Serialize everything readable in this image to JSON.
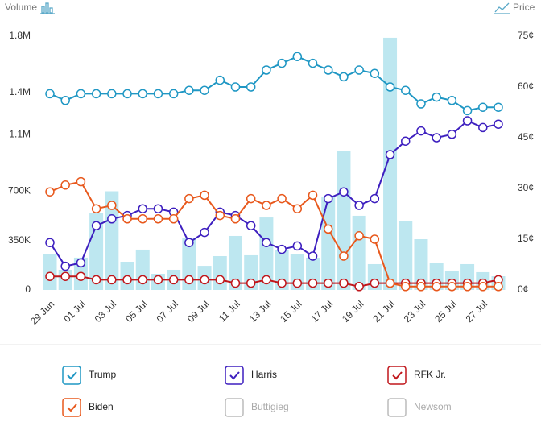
{
  "chart_data": {
    "type": "combo",
    "y_axis_label": "Volume",
    "y2_axis_label": "Price",
    "categories": [
      "29 Jun",
      null,
      "01 Jul",
      null,
      "03 Jul",
      null,
      "05 Jul",
      null,
      "07 Jul",
      null,
      "09 Jul",
      null,
      "11 Jul",
      null,
      "13 Jul",
      null,
      "15 Jul",
      null,
      "17 Jul",
      null,
      "19 Jul",
      null,
      "21 Jul",
      null,
      "23 Jul",
      null,
      "25 Jul",
      null,
      "27 Jul",
      null
    ],
    "ylim": [
      0,
      1800000
    ],
    "yticks": [
      0,
      {
        "value": 350000,
        "label": "350K"
      },
      {
        "value": 700000,
        "label": "700K"
      },
      {
        "value": 1100000,
        "label": "1.1M"
      },
      {
        "value": 1400000,
        "label": "1.4M"
      },
      {
        "value": 1800000,
        "label": "1.8M"
      }
    ],
    "y2lim": [
      0,
      75
    ],
    "y2ticks": [
      {
        "value": 0,
        "label": "0¢"
      },
      {
        "value": 15,
        "label": "15¢"
      },
      {
        "value": 30,
        "label": "30¢"
      },
      {
        "value": 45,
        "label": "45¢"
      },
      {
        "value": 60,
        "label": "60¢"
      },
      {
        "value": 75,
        "label": "75¢"
      }
    ],
    "volume": {
      "color": "#bde7f0",
      "values": [
        257000,
        143000,
        229000,
        545000,
        700000,
        200000,
        286000,
        114000,
        143000,
        371000,
        171000,
        240000,
        383000,
        246000,
        514000,
        286000,
        257000,
        229000,
        657000,
        983000,
        526000,
        183000,
        1789000,
        486000,
        360000,
        194000,
        137000,
        183000,
        126000,
        97000
      ]
    },
    "series": [
      {
        "name": "Trump",
        "color": "#1f97c4",
        "checked": true,
        "axis": "y2",
        "values": [
          58,
          56,
          58,
          58,
          58,
          58,
          58,
          58,
          58,
          59,
          59,
          62,
          60,
          60,
          65,
          67,
          69,
          67,
          65,
          63,
          65,
          64,
          60,
          59,
          55,
          57,
          56,
          53,
          54,
          54
        ]
      },
      {
        "name": "Harris",
        "color": "#3d1fbf",
        "checked": true,
        "axis": "y2",
        "values": [
          14,
          7,
          8,
          19,
          21,
          22,
          24,
          24,
          23,
          14,
          17,
          23,
          22,
          19,
          14,
          12,
          13,
          10,
          27,
          29,
          25,
          27,
          40,
          44,
          47,
          45,
          46,
          50,
          48,
          49
        ]
      },
      {
        "name": "RFK Jr.",
        "color": "#c0161b",
        "checked": true,
        "axis": "y2",
        "values": [
          4,
          4,
          4,
          3,
          3,
          3,
          3,
          3,
          3,
          3,
          3,
          3,
          2,
          2,
          3,
          2,
          2,
          2,
          2,
          2,
          1,
          2,
          2,
          2,
          2,
          2,
          2,
          2,
          2,
          3
        ]
      },
      {
        "name": "Biden",
        "color": "#e8581c",
        "checked": true,
        "axis": "y2",
        "values": [
          29,
          31,
          32,
          24,
          25,
          21,
          21,
          21,
          21,
          27,
          28,
          22,
          21,
          27,
          25,
          27,
          24,
          28,
          18,
          10,
          16,
          15,
          2,
          1,
          1,
          1,
          1,
          1,
          1,
          1
        ]
      },
      {
        "name": "Buttigieg",
        "color": "#bbbbbb",
        "checked": false
      },
      {
        "name": "Newsom",
        "color": "#bbbbbb",
        "checked": false
      }
    ]
  }
}
